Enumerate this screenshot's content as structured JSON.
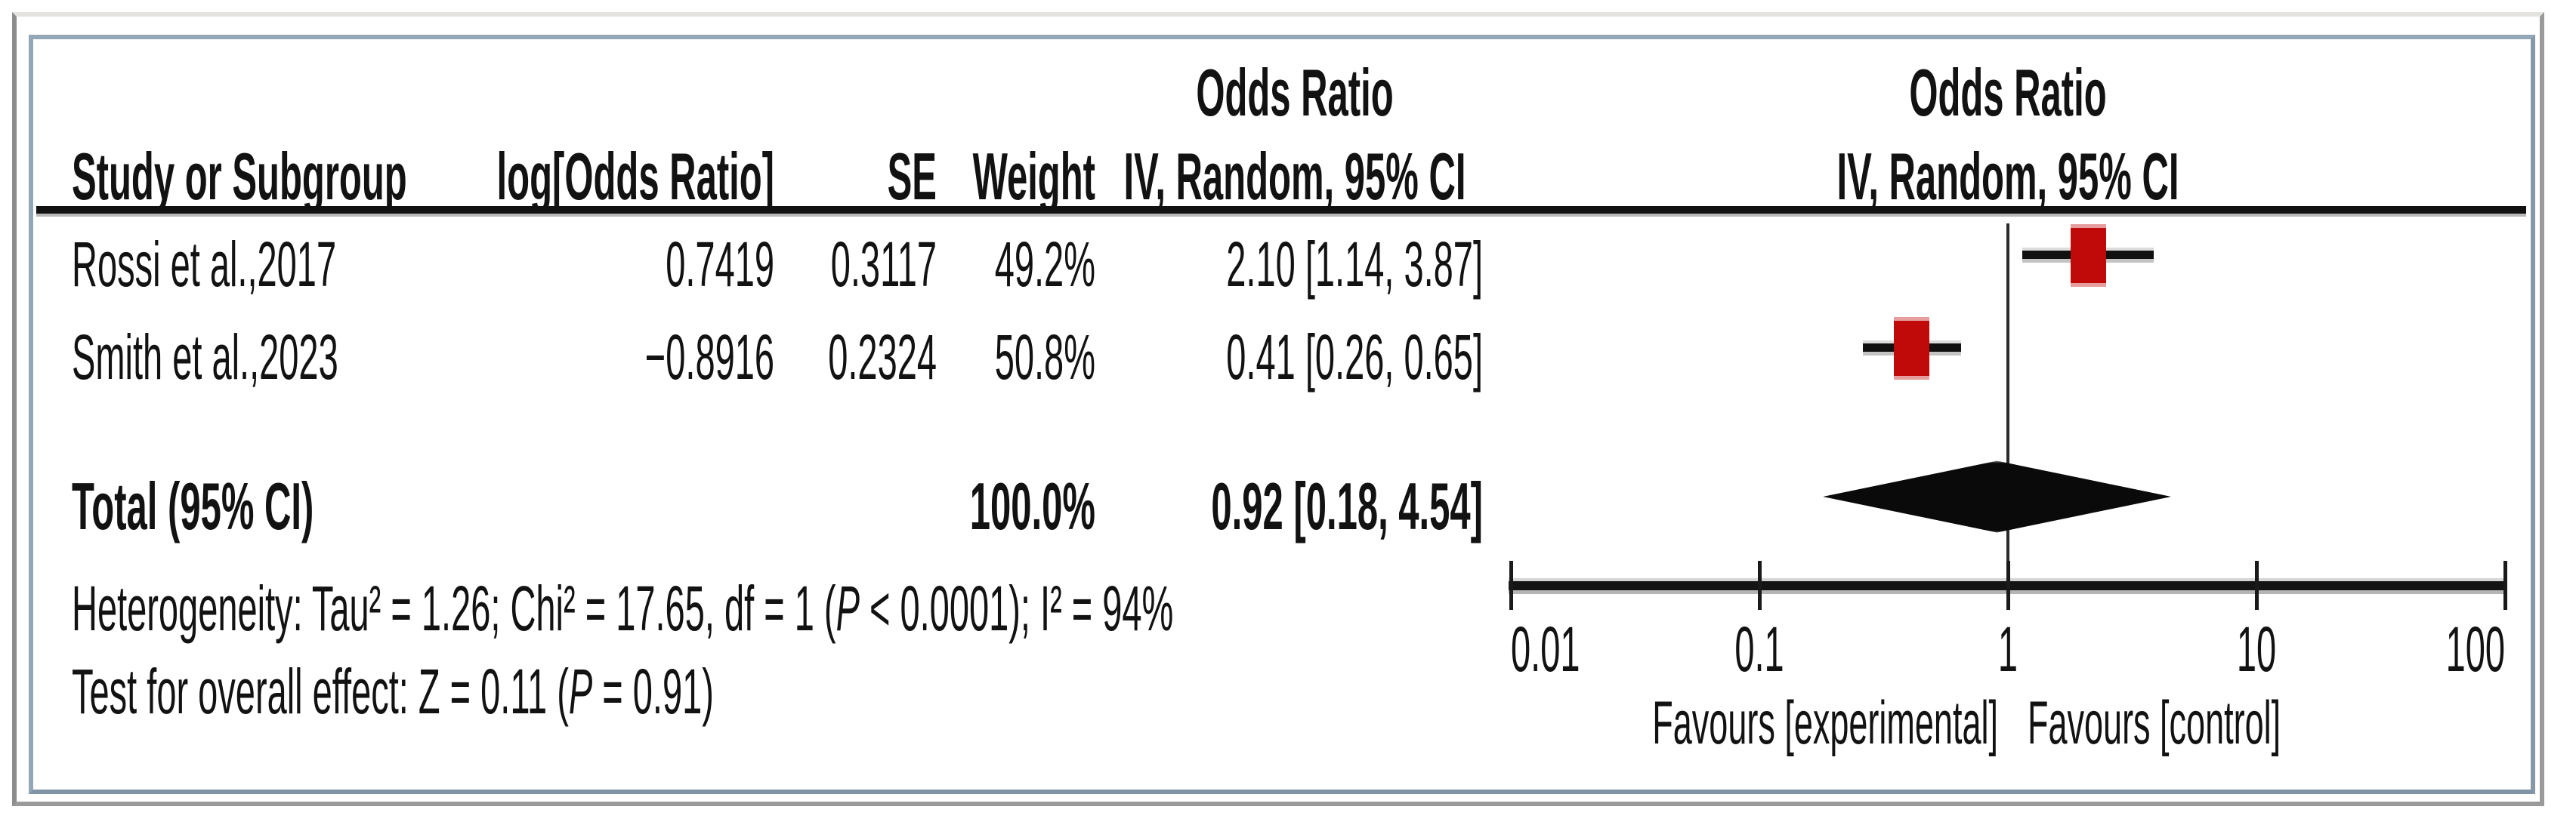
{
  "table": {
    "group_headers": {
      "stats_or": "Odds Ratio",
      "plot_or": "Odds Ratio"
    },
    "col_headers": {
      "study": "Study or Subgroup",
      "log_or": "log[Odds Ratio]",
      "se": "SE",
      "weight": "Weight",
      "ci": "IV, Random, 95% CI",
      "plot_ci": "IV, Random, 95% CI"
    },
    "studies": [
      {
        "name": "Rossi et al.,2017",
        "log_or": "0.7419",
        "se": "0.3117",
        "weight": "49.2%",
        "or_ci": "2.10 [1.14, 3.87]"
      },
      {
        "name": "Smith et al.,2023",
        "log_or": "−0.8916",
        "se": "0.2324",
        "weight": "50.8%",
        "or_ci": "0.41 [0.26, 0.65]"
      }
    ],
    "total": {
      "label": "Total (95% CI)",
      "weight": "100.0%",
      "or_ci": "0.92 [0.18, 4.54]"
    }
  },
  "stats": {
    "het_prefix": "Heterogeneity: Tau² = 1.26; Chi² = 17.65, df = 1 (",
    "het_p": "P",
    "het_suffix": " < 0.0001); I² = 94%",
    "effect_prefix": "Test for overall effect: Z = 0.11 (",
    "effect_p": "P",
    "effect_suffix": " = 0.91)"
  },
  "axis": {
    "tick_labels": [
      "0.01",
      "0.1",
      "1",
      "10",
      "100"
    ],
    "favours_left": "Favours [experimental]",
    "favours_right": "Favours [control]"
  },
  "chart_data": {
    "type": "forest",
    "x_scale": "log10",
    "x_range": [
      0.01,
      100
    ],
    "x_ticks": [
      0.01,
      0.1,
      1,
      10,
      100
    ],
    "effect_measure": "Odds Ratio",
    "model": "IV, Random, 95% CI",
    "studies": [
      {
        "name": "Rossi et al.,2017",
        "log_or": 0.7419,
        "se": 0.3117,
        "weight_pct": 49.2,
        "or": 2.1,
        "ci_low": 1.14,
        "ci_high": 3.87
      },
      {
        "name": "Smith et al.,2023",
        "log_or": -0.8916,
        "se": 0.2324,
        "weight_pct": 50.8,
        "or": 0.41,
        "ci_low": 0.26,
        "ci_high": 0.65
      }
    ],
    "total": {
      "or": 0.92,
      "ci_low": 0.18,
      "ci_high": 4.54,
      "weight_pct": 100.0
    },
    "heterogeneity": {
      "tau2": 1.26,
      "chi2": 17.65,
      "df": 1,
      "p": "< 0.0001",
      "i2_pct": 94
    },
    "overall_effect": {
      "z": 0.11,
      "p": 0.91
    },
    "marker_color": "#c00a0a",
    "diamond_color": "#0a0a0a",
    "axis_color": "#1a1a1a"
  },
  "colors": {
    "frame_outer": "#9a9a9a",
    "frame_inner": "#94a7b7",
    "marker_red": "#c00a0a",
    "text": "#111111"
  }
}
